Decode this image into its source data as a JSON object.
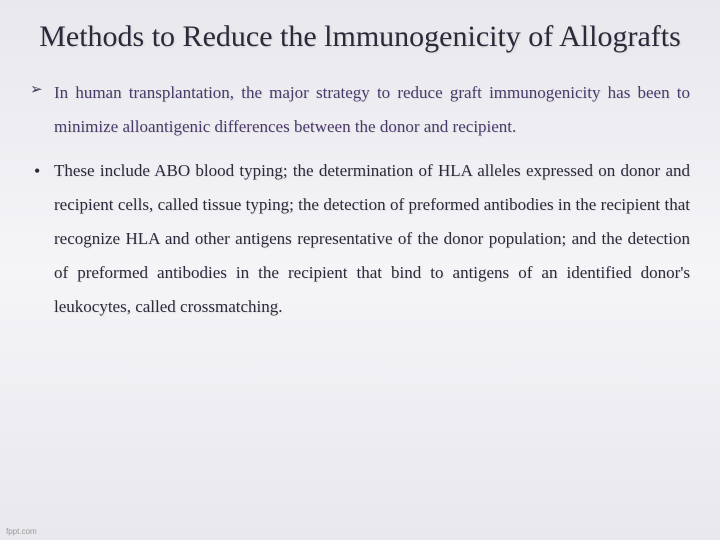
{
  "slide": {
    "title": "Methods to Reduce the lmmunogenicity of Allografts",
    "bullets": [
      {
        "marker": "➢",
        "marker_class": "arrow",
        "text_class": "purple",
        "text": "In human transplantation, the major strategy to reduce graft immunogenicity has been to minimize alloantigenic differences between the donor and recipient."
      },
      {
        "marker": "•",
        "marker_class": "dot",
        "text_class": "",
        "text": "These include ABO blood typing; the determination of HLA alleles expressed on donor and recipient cells, called tissue typing; the detection of preformed antibodies in the recipient that recognize HLA and other antigens representative of the donor population; and the detection of preformed antibodies in the recipient that bind to antigens of an identified donor's leukocytes, called crossmatching."
      }
    ],
    "watermark": "fppt.com"
  },
  "style": {
    "background_gradient": [
      "#e8e8ed",
      "#f5f5f8",
      "#e8e8ed"
    ],
    "title_fontsize": 30,
    "title_color": "#2a2a3a",
    "body_fontsize": 17,
    "body_color": "#2a2a3a",
    "purple_color": "#4a3a6a",
    "line_height": 2.0,
    "font_family": "Georgia, Times New Roman, serif"
  }
}
